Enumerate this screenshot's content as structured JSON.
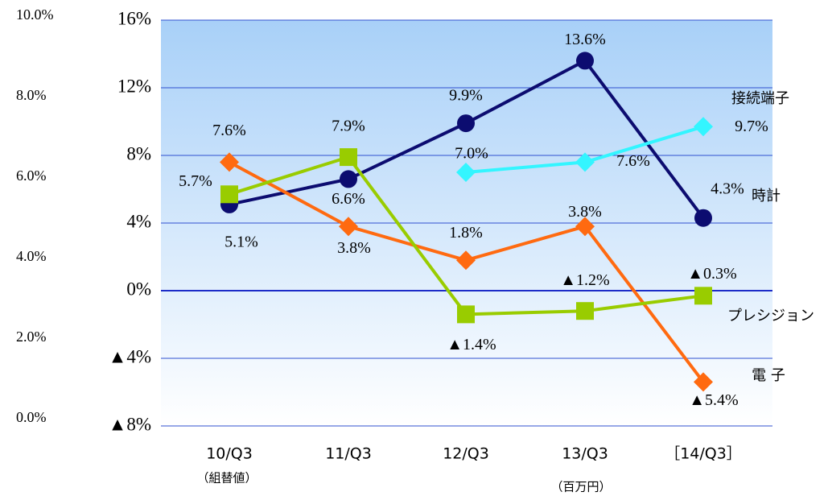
{
  "chart_data": {
    "type": "line",
    "categories": [
      "10/Q3",
      "11/Q3",
      "12/Q3",
      "13/Q3",
      "［14/Q3］"
    ],
    "category_notes": [
      "（組替値）",
      "（百万円）"
    ],
    "ylim": [
      -8,
      16
    ],
    "yticks": [
      {
        "value": -8,
        "label": "▲8%"
      },
      {
        "value": -4,
        "label": "▲4%"
      },
      {
        "value": 0,
        "label": "0%"
      },
      {
        "value": 4,
        "label": "4%"
      },
      {
        "value": 8,
        "label": "8%"
      },
      {
        "value": 12,
        "label": "12%"
      },
      {
        "value": 16,
        "label": "16%"
      }
    ],
    "y2lim": [
      0,
      10
    ],
    "y2ticks": [
      {
        "value": 0,
        "label": "0.0%"
      },
      {
        "value": 2,
        "label": "2.0%"
      },
      {
        "value": 4,
        "label": "4.0%"
      },
      {
        "value": 6,
        "label": "6.0%"
      },
      {
        "value": 8,
        "label": "8.0%"
      },
      {
        "value": 10,
        "label": "10.0%"
      }
    ],
    "grid": true,
    "series": [
      {
        "name": "時計",
        "color": "#0c0c70",
        "marker": "circle",
        "values": [
          5.1,
          6.6,
          9.9,
          13.6,
          4.3
        ],
        "value_labels": [
          "5.1%",
          "6.6%",
          "9.9%",
          "13.6%",
          "4.3%"
        ]
      },
      {
        "name": "接続端子",
        "color": "#33f5ff",
        "marker": "diamond",
        "values": [
          null,
          null,
          7.0,
          7.6,
          9.7
        ],
        "value_labels": [
          null,
          null,
          "7.0%",
          "7.6%",
          "9.7%"
        ]
      },
      {
        "name": "電 子",
        "color": "#ff6a10",
        "marker": "diamond",
        "values": [
          7.6,
          3.8,
          1.8,
          3.8,
          -5.4
        ],
        "value_labels": [
          "7.6%",
          "3.8%",
          "1.8%",
          "3.8%",
          "▲5.4%"
        ]
      },
      {
        "name": "プレシジョン",
        "color": "#99cc00",
        "marker": "square",
        "values": [
          5.7,
          7.9,
          -1.4,
          -1.2,
          -0.3
        ],
        "value_labels": [
          "5.7%",
          "7.9%",
          "▲1.4%",
          "▲1.2%",
          "▲0.3%"
        ]
      }
    ]
  }
}
